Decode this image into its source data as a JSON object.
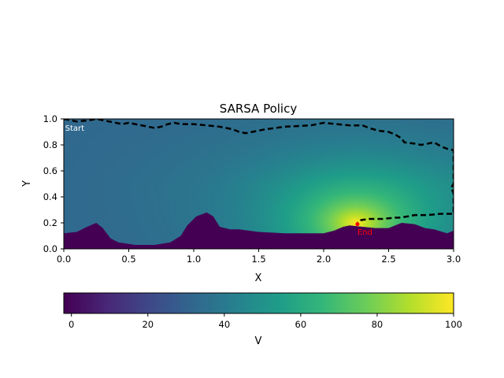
{
  "chart_data": [
    {
      "type": "heatmap",
      "title": "SARSA Policy",
      "xlabel": "X",
      "ylabel": "Y",
      "xlim": [
        0.0,
        3.0
      ],
      "ylim": [
        0.0,
        1.0
      ],
      "x_ticks": [
        "0.0",
        "0.5",
        "1.0",
        "1.5",
        "2.0",
        "2.5",
        "3.0"
      ],
      "y_ticks": [
        "0.0",
        "0.2",
        "0.4",
        "0.6",
        "0.8",
        "1.0"
      ],
      "x_tick_values": [
        0,
        0.5,
        1.0,
        1.5,
        2.0,
        2.5,
        3.0
      ],
      "y_tick_values": [
        0,
        0.2,
        0.4,
        0.6,
        0.8,
        1.0
      ],
      "colormap": "viridis",
      "value_range": [
        -2,
        100
      ],
      "value_peak": {
        "x": 2.25,
        "y": 0.2,
        "value": 100
      },
      "background_value": 32,
      "obstacle_value": -2,
      "terrain_floor": {
        "x": [
          0.0,
          0.1,
          0.18,
          0.25,
          0.3,
          0.36,
          0.42,
          0.55,
          0.7,
          0.82,
          0.9,
          0.95,
          1.02,
          1.1,
          1.15,
          1.2,
          1.28,
          1.35,
          1.5,
          1.7,
          1.9,
          2.0,
          2.08,
          2.15,
          2.2,
          2.3,
          2.4,
          2.5,
          2.55,
          2.6,
          2.7,
          2.78,
          2.85,
          2.95,
          3.0
        ],
        "y": [
          0.12,
          0.13,
          0.17,
          0.2,
          0.16,
          0.08,
          0.05,
          0.03,
          0.03,
          0.05,
          0.1,
          0.18,
          0.25,
          0.28,
          0.25,
          0.17,
          0.15,
          0.15,
          0.13,
          0.12,
          0.12,
          0.12,
          0.14,
          0.17,
          0.18,
          0.17,
          0.16,
          0.16,
          0.18,
          0.2,
          0.19,
          0.16,
          0.15,
          0.12,
          0.14
        ]
      },
      "series": [
        {
          "name": "",
          "style": "dashed",
          "color": "#000000",
          "x": [
            0.0,
            0.1,
            0.2,
            0.25,
            0.3,
            0.35,
            0.4,
            0.45,
            0.5,
            0.55,
            0.6,
            0.65,
            0.7,
            0.75,
            0.8,
            0.85,
            0.9,
            1.0,
            1.1,
            1.2,
            1.3,
            1.35,
            1.4,
            1.45,
            1.55,
            1.7,
            1.9,
            1.95,
            2.0,
            2.1,
            2.2,
            2.3,
            2.35,
            2.42,
            2.5,
            2.55,
            2.6,
            2.62,
            2.7,
            2.75,
            2.8,
            2.85,
            2.9,
            2.95,
            3.0,
            3.0,
            2.98,
            3.0,
            3.0,
            2.9,
            2.8,
            2.7,
            2.65,
            2.58,
            2.55,
            2.45,
            2.35,
            2.28,
            2.26
          ],
          "y": [
            1.0,
            0.98,
            0.99,
            1.0,
            0.99,
            0.98,
            0.97,
            0.96,
            0.97,
            0.96,
            0.95,
            0.94,
            0.93,
            0.94,
            0.96,
            0.97,
            0.96,
            0.96,
            0.95,
            0.94,
            0.92,
            0.9,
            0.89,
            0.9,
            0.92,
            0.94,
            0.95,
            0.96,
            0.97,
            0.96,
            0.95,
            0.95,
            0.93,
            0.91,
            0.9,
            0.88,
            0.85,
            0.82,
            0.81,
            0.8,
            0.81,
            0.82,
            0.79,
            0.77,
            0.76,
            0.5,
            0.47,
            0.43,
            0.27,
            0.27,
            0.26,
            0.26,
            0.25,
            0.24,
            0.24,
            0.23,
            0.23,
            0.22,
            0.2
          ]
        }
      ],
      "annotations": [
        {
          "text": "Start",
          "x": 0.01,
          "y": 0.91,
          "color": "#ffffff"
        },
        {
          "text": "End",
          "x": 2.26,
          "y": 0.11,
          "color": "#ff0000"
        }
      ],
      "end_marker": {
        "x": 2.26,
        "y": 0.19,
        "color": "#ff0000"
      },
      "grid": false,
      "legend": "none"
    },
    {
      "type": "colorbar",
      "label": "V",
      "ticks": [
        "0",
        "20",
        "40",
        "60",
        "80",
        "100"
      ],
      "tick_values": [
        0,
        20,
        40,
        60,
        80,
        100
      ],
      "range": [
        -2,
        100
      ],
      "orientation": "horizontal"
    }
  ]
}
